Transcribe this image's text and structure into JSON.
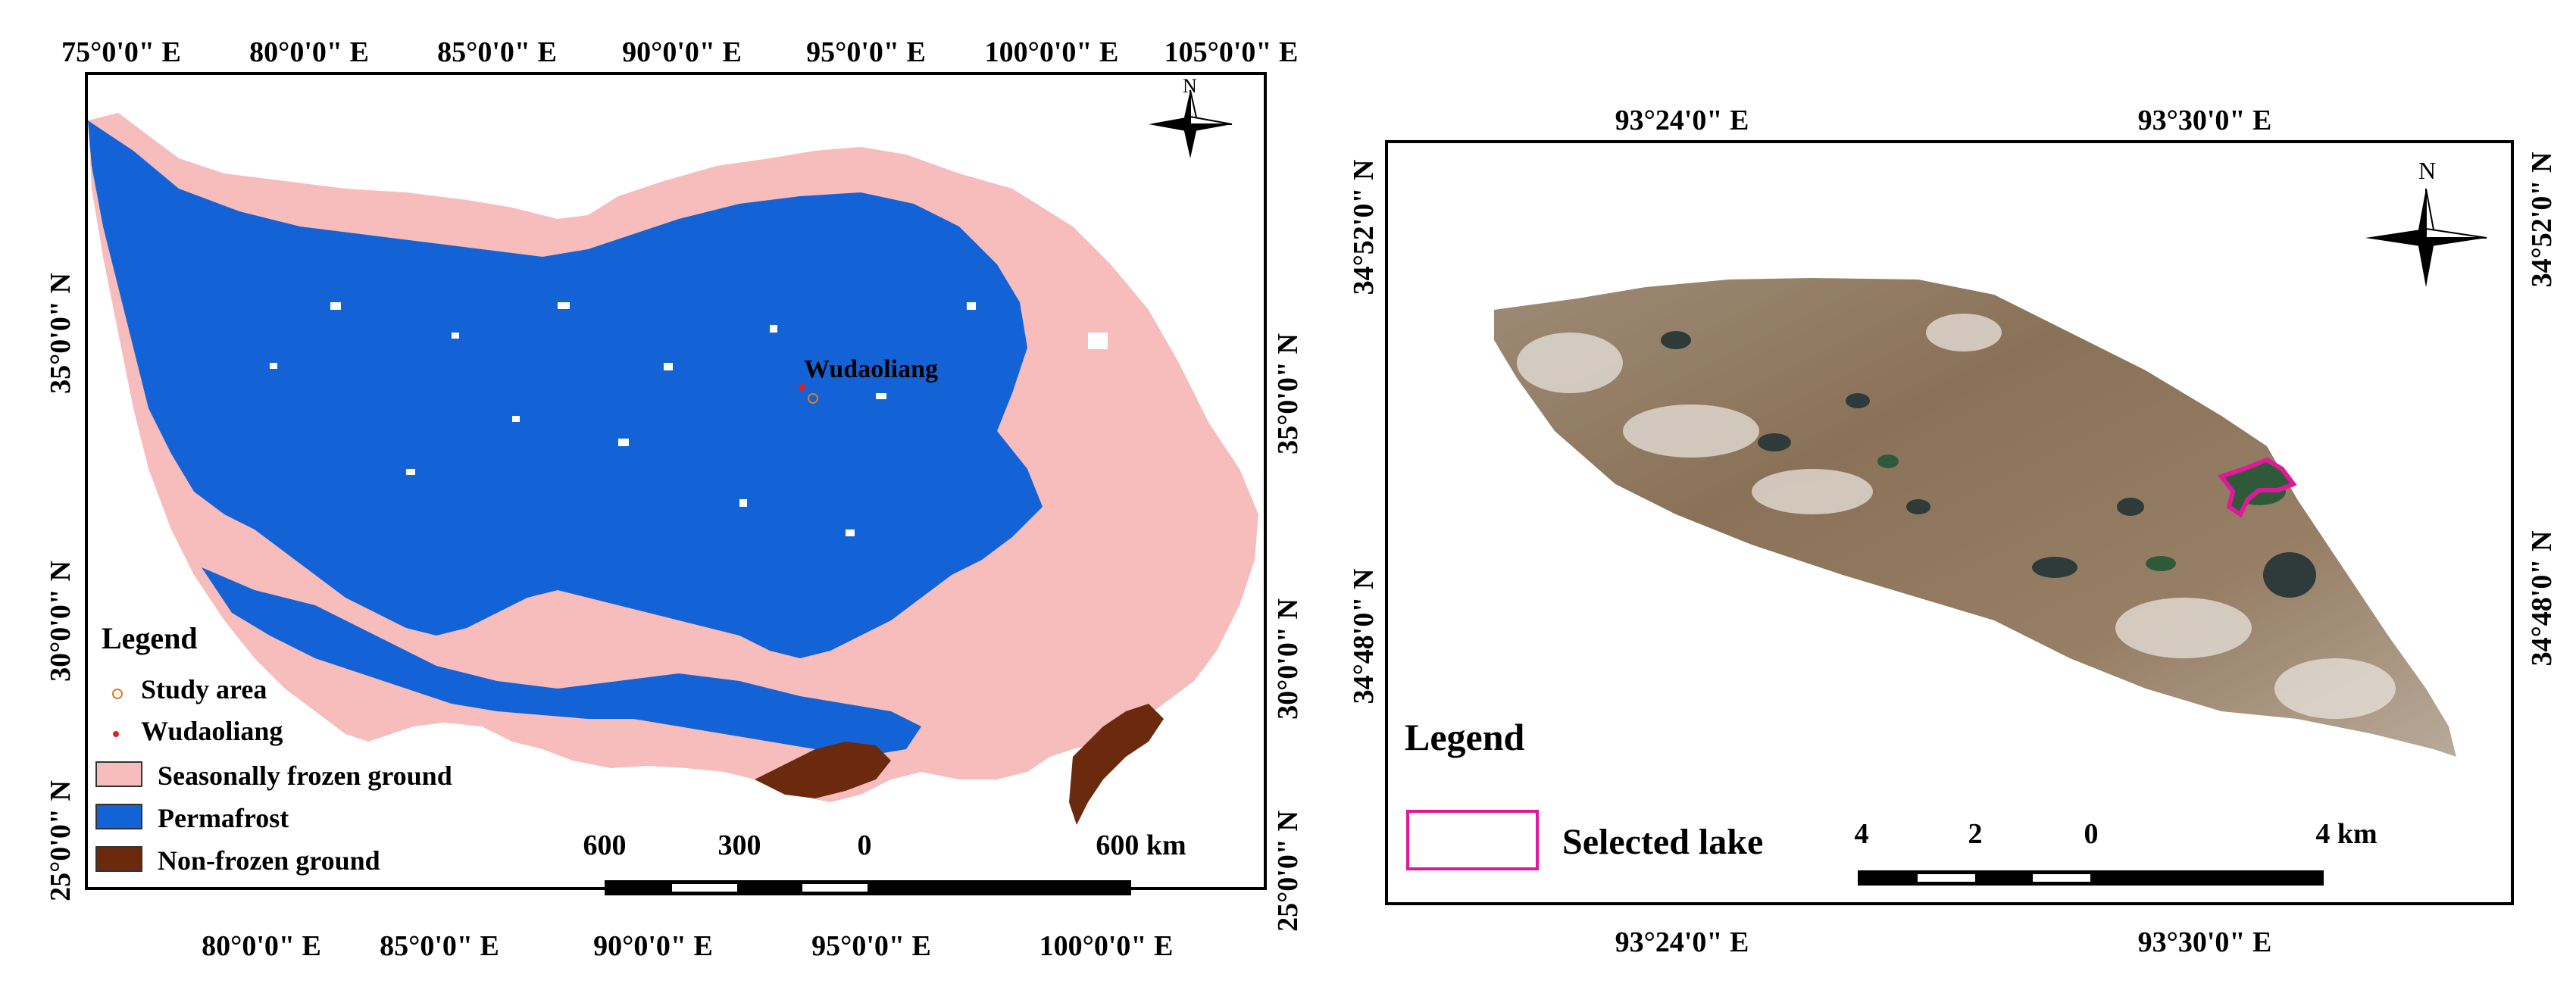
{
  "left_map": {
    "top_longitudes": [
      "75°0'0\" E",
      "80°0'0\" E",
      "85°0'0\" E",
      "90°0'0\" E",
      "95°0'0\" E",
      "100°0'0\" E",
      "105°0'0\" E"
    ],
    "bottom_longitudes": [
      "80°0'0\" E",
      "85°0'0\" E",
      "90°0'0\" E",
      "95°0'0\" E",
      "100°0'0\" E"
    ],
    "left_latitudes": [
      "35°0'0\" N",
      "30°0'0\" N",
      "25°0'0\" N"
    ],
    "right_latitudes": [
      "35°0'0\" N",
      "30°0'0\" N",
      "25°0'0\" N"
    ],
    "north_label": "N",
    "place_label": "Wudaoliang",
    "legend": {
      "title": "Legend",
      "items": [
        {
          "label": "Study area",
          "symbol": "circle-outline",
          "color": "#e07a1f"
        },
        {
          "label": "Wudaoliang",
          "symbol": "dot",
          "color": "#e02020"
        },
        {
          "label": "Seasonally  frozen ground",
          "symbol": "box",
          "color": "#f7bcbc"
        },
        {
          "label": "Permafrost",
          "symbol": "box",
          "color": "#1463d6"
        },
        {
          "label": "Non-frozen ground",
          "symbol": "box",
          "color": "#6b2a0e"
        }
      ]
    },
    "scale": {
      "labels": [
        "600",
        "300",
        "0",
        "600 km"
      ]
    }
  },
  "right_map": {
    "top_longitudes": [
      "93°24'0\" E",
      "93°30'0\" E"
    ],
    "bottom_longitudes": [
      "93°24'0\" E",
      "93°30'0\" E"
    ],
    "left_latitudes": [
      "34°52'0\" N",
      "34°48'0\" N"
    ],
    "right_latitudes": [
      "34°52'0\" N",
      "34°48'0\" N"
    ],
    "north_label": "N",
    "legend": {
      "title": "Legend",
      "items": [
        {
          "label": "Selected lake",
          "symbol": "box-outline",
          "color": "#e0199a"
        }
      ]
    },
    "scale": {
      "labels": [
        "4",
        "2",
        "0",
        "4 km"
      ]
    }
  },
  "colors": {
    "seasonally_frozen": "#f7bcbc",
    "permafrost": "#1463d6",
    "non_frozen": "#6b2a0e",
    "selected_lake_outline": "#e0199a",
    "imagery_base": "#8a7258"
  }
}
